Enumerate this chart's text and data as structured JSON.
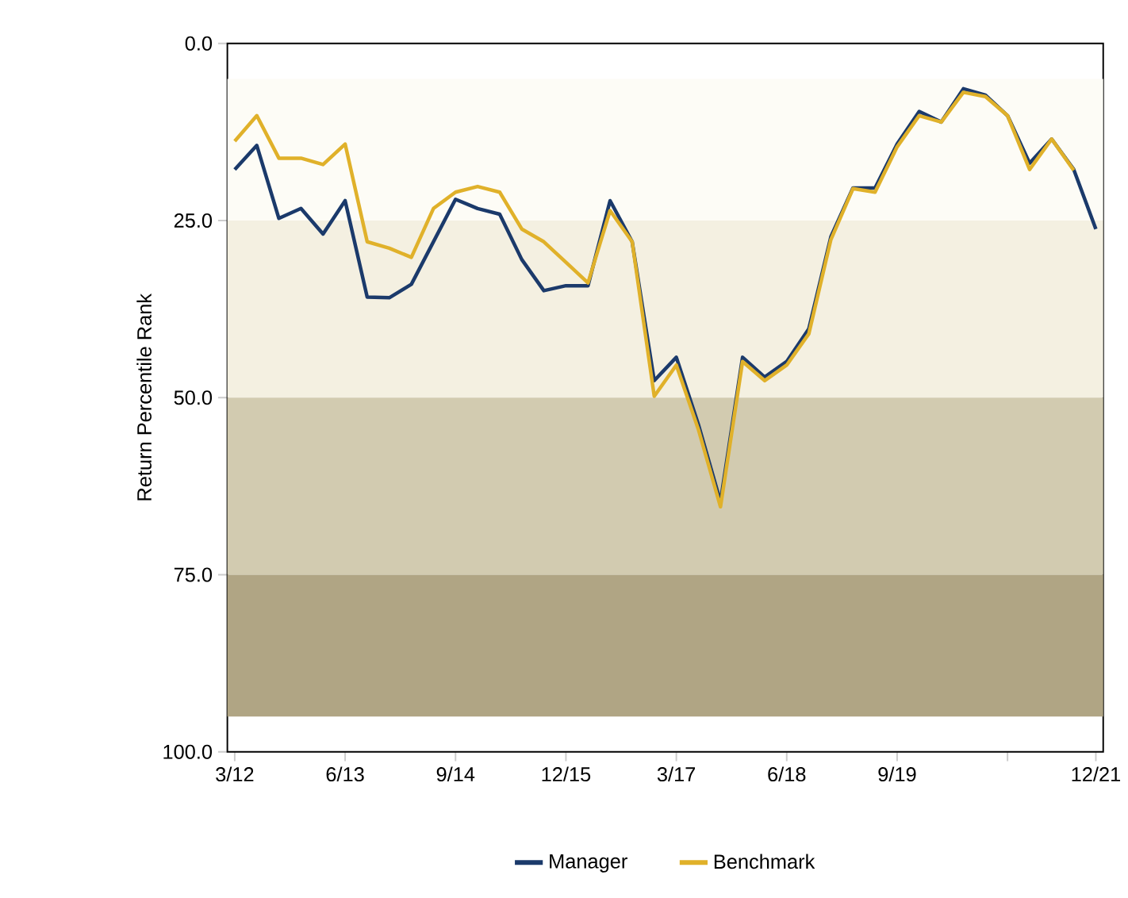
{
  "chart_data": {
    "type": "line",
    "ylabel": "Return Percentile Rank",
    "x": [
      "2012-03",
      "2012-06",
      "2012-09",
      "2012-12",
      "2013-03",
      "2013-06",
      "2013-09",
      "2013-12",
      "2014-03",
      "2014-06",
      "2014-09",
      "2014-12",
      "2015-03",
      "2015-06",
      "2015-09",
      "2015-12",
      "2016-03",
      "2016-06",
      "2016-09",
      "2016-12",
      "2017-03",
      "2017-06",
      "2017-09",
      "2017-12",
      "2018-03",
      "2018-06",
      "2018-09",
      "2018-12",
      "2019-03",
      "2019-06",
      "2019-09",
      "2019-12",
      "2020-03",
      "2020-06",
      "2020-09",
      "2020-12",
      "2021-03",
      "2021-06",
      "2021-09",
      "2021-12"
    ],
    "series": [
      {
        "name": "Manager",
        "color": "#1b3a6b",
        "values": [
          17.8,
          14.4,
          24.7,
          23.3,
          26.9,
          22.2,
          35.8,
          35.9,
          34.0,
          28.0,
          22.0,
          23.3,
          24.1,
          30.5,
          34.9,
          34.2,
          34.2,
          22.2,
          28.0,
          47.6,
          44.3,
          53.8,
          64.7,
          44.3,
          47.1,
          44.9,
          40.3,
          27.3,
          20.4,
          20.4,
          14.2,
          9.6,
          11.1,
          6.4,
          7.3,
          10.2,
          16.9,
          13.5,
          17.8,
          26.2
        ]
      },
      {
        "name": "Benchmark",
        "color": "#e0b12a",
        "values": [
          13.8,
          10.2,
          16.2,
          16.2,
          17.1,
          14.2,
          28.0,
          28.9,
          30.2,
          23.3,
          21.0,
          20.2,
          21.0,
          26.2,
          28.0,
          30.9,
          33.8,
          23.6,
          28.0,
          49.8,
          45.4,
          54.5,
          65.4,
          44.9,
          47.6,
          45.4,
          41.0,
          27.7,
          20.5,
          21.0,
          14.6,
          10.2,
          11.1,
          6.9,
          7.5,
          10.2,
          17.8,
          13.5,
          17.9,
          null
        ]
      }
    ],
    "xlim": [
      "2012-02",
      "2022-01"
    ],
    "xticks": [
      {
        "value": "2012-03",
        "label": "3/12"
      },
      {
        "value": "2013-06",
        "label": "6/13"
      },
      {
        "value": "2014-09",
        "label": "9/14"
      },
      {
        "value": "2015-12",
        "label": "12/15"
      },
      {
        "value": "2017-03",
        "label": "3/17"
      },
      {
        "value": "2018-06",
        "label": "6/18"
      },
      {
        "value": "2019-09",
        "label": "9/19"
      },
      {
        "value": "2020-12",
        "label": null
      },
      {
        "value": "2021-12",
        "label": "12/21"
      }
    ],
    "ylim": [
      100,
      0
    ],
    "yticks": [
      {
        "value": 0,
        "label": "0.0"
      },
      {
        "value": 25,
        "label": "25.0"
      },
      {
        "value": 50,
        "label": "50.0"
      },
      {
        "value": 75,
        "label": "75.0"
      },
      {
        "value": 100,
        "label": "100.0"
      }
    ],
    "bands": [
      {
        "axis": "y",
        "from": 5,
        "to": 25,
        "color": "#fdfcf6"
      },
      {
        "axis": "y",
        "from": 25,
        "to": 50,
        "color": "#f4f0e1"
      },
      {
        "axis": "y",
        "from": 50,
        "to": 75,
        "color": "#d2cbb0"
      },
      {
        "axis": "y",
        "from": 75,
        "to": 95,
        "color": "#b0a584"
      }
    ],
    "legend": "bottom"
  }
}
